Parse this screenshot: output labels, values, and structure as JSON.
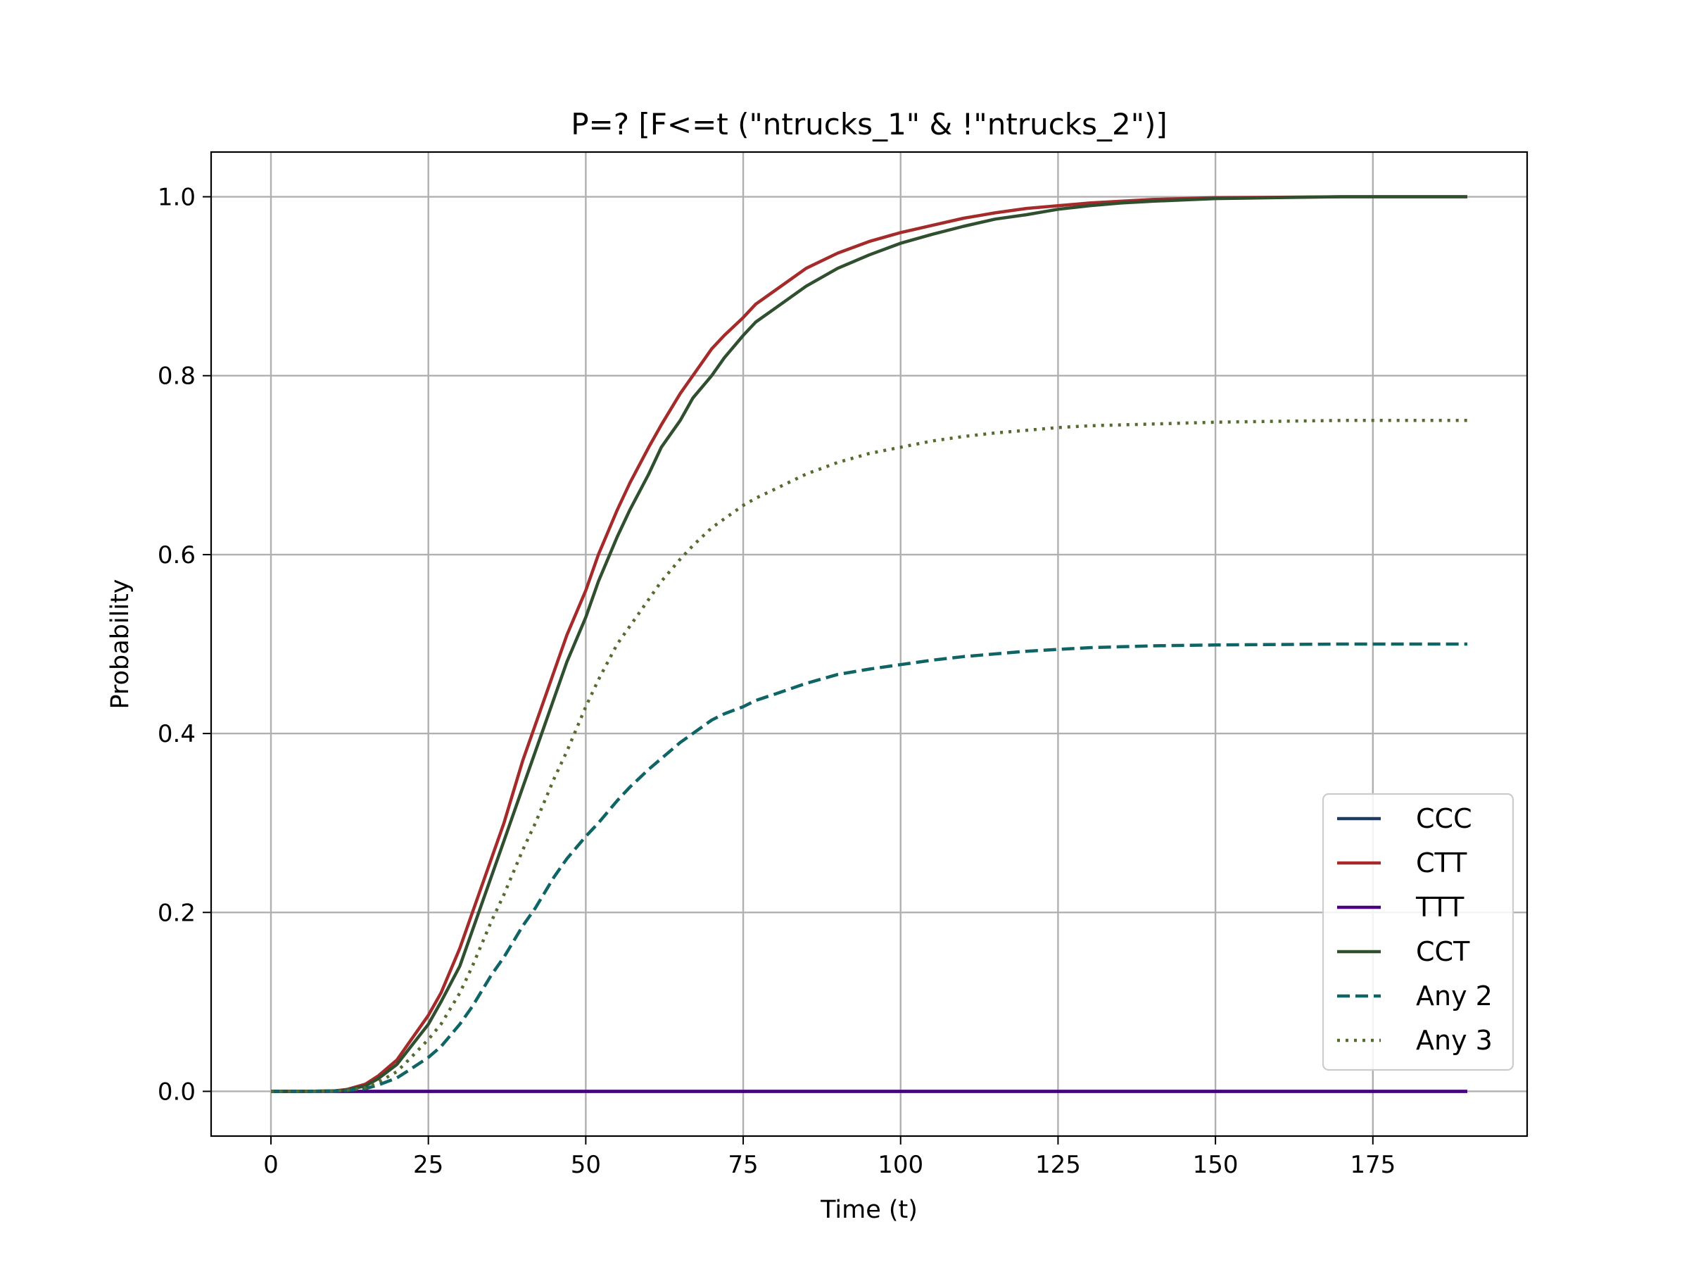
{
  "chart_data": {
    "type": "line",
    "title": "P=? [F<=t (\"ntrucks_1\" & !\"ntrucks_2\")]",
    "xlabel": "Time (t)",
    "ylabel": "Probability",
    "xlim": [
      -9.5,
      199.5
    ],
    "ylim": [
      -0.05,
      1.05
    ],
    "xticks": [
      0,
      25,
      50,
      75,
      100,
      125,
      150,
      175
    ],
    "xtick_labels": [
      "0",
      "25",
      "50",
      "75",
      "100",
      "125",
      "150",
      "175"
    ],
    "yticks": [
      0.0,
      0.2,
      0.4,
      0.6,
      0.8,
      1.0
    ],
    "ytick_labels": [
      "0.0",
      "0.2",
      "0.4",
      "0.6",
      "0.8",
      "1.0"
    ],
    "grid": true,
    "legend_position": "lower-right",
    "x": [
      0,
      5,
      10,
      12,
      15,
      17,
      20,
      22,
      25,
      27,
      30,
      32,
      35,
      37,
      40,
      42,
      45,
      47,
      50,
      52,
      55,
      57,
      60,
      62,
      65,
      67,
      70,
      72,
      75,
      77,
      80,
      85,
      90,
      95,
      100,
      105,
      110,
      115,
      120,
      125,
      130,
      135,
      140,
      150,
      160,
      170,
      180,
      190
    ],
    "series": [
      {
        "name": "CCC",
        "color": "#1f3a5f",
        "dash": "solid",
        "values": [
          0,
          0,
          0,
          0,
          0,
          0,
          0,
          0,
          0,
          0,
          0,
          0,
          0,
          0,
          0,
          0,
          0,
          0,
          0,
          0,
          0,
          0,
          0,
          0,
          0,
          0,
          0,
          0,
          0,
          0,
          0,
          0,
          0,
          0,
          0,
          0,
          0,
          0,
          0,
          0,
          0,
          0,
          0,
          0,
          0,
          0,
          0,
          0
        ]
      },
      {
        "name": "CTT",
        "color": "#a52a2a",
        "dash": "solid",
        "values": [
          0.0,
          0.0,
          0.0005,
          0.002,
          0.008,
          0.017,
          0.035,
          0.055,
          0.085,
          0.11,
          0.16,
          0.2,
          0.26,
          0.3,
          0.37,
          0.41,
          0.47,
          0.51,
          0.56,
          0.6,
          0.65,
          0.68,
          0.72,
          0.745,
          0.78,
          0.8,
          0.83,
          0.845,
          0.865,
          0.88,
          0.895,
          0.92,
          0.937,
          0.95,
          0.96,
          0.968,
          0.976,
          0.982,
          0.987,
          0.99,
          0.993,
          0.995,
          0.997,
          0.999,
          0.9995,
          1.0,
          1.0,
          1.0
        ]
      },
      {
        "name": "TTT",
        "color": "#4b0082",
        "dash": "solid",
        "values": [
          0,
          0,
          0,
          0,
          0,
          0,
          0,
          0,
          0,
          0,
          0,
          0,
          0,
          0,
          0,
          0,
          0,
          0,
          0,
          0,
          0,
          0,
          0,
          0,
          0,
          0,
          0,
          0,
          0,
          0,
          0,
          0,
          0,
          0,
          0,
          0,
          0,
          0,
          0,
          0,
          0,
          0,
          0,
          0,
          0,
          0,
          0,
          0
        ]
      },
      {
        "name": "CCT",
        "color": "#2f4f2f",
        "dash": "solid",
        "values": [
          0.0,
          0.0,
          0.0004,
          0.0015,
          0.006,
          0.014,
          0.03,
          0.048,
          0.075,
          0.1,
          0.14,
          0.18,
          0.24,
          0.28,
          0.34,
          0.38,
          0.44,
          0.48,
          0.53,
          0.57,
          0.62,
          0.65,
          0.69,
          0.72,
          0.75,
          0.775,
          0.8,
          0.82,
          0.845,
          0.86,
          0.875,
          0.9,
          0.92,
          0.935,
          0.948,
          0.958,
          0.967,
          0.975,
          0.98,
          0.986,
          0.99,
          0.993,
          0.995,
          0.998,
          0.999,
          1.0,
          1.0,
          1.0
        ]
      },
      {
        "name": "Any 2",
        "color": "#0f6466",
        "dash": "dashed",
        "values": [
          0.0,
          0.0,
          0.0002,
          0.001,
          0.003,
          0.007,
          0.015,
          0.024,
          0.038,
          0.05,
          0.075,
          0.095,
          0.13,
          0.15,
          0.185,
          0.205,
          0.24,
          0.26,
          0.285,
          0.3,
          0.325,
          0.34,
          0.36,
          0.372,
          0.39,
          0.4,
          0.415,
          0.422,
          0.43,
          0.437,
          0.444,
          0.456,
          0.466,
          0.472,
          0.477,
          0.482,
          0.486,
          0.489,
          0.492,
          0.494,
          0.496,
          0.497,
          0.498,
          0.499,
          0.4995,
          0.5,
          0.5,
          0.5
        ]
      },
      {
        "name": "Any 3",
        "color": "#556b2f",
        "dash": "dotted",
        "values": [
          0.0,
          0.0,
          0.0003,
          0.0012,
          0.004,
          0.01,
          0.022,
          0.036,
          0.058,
          0.075,
          0.11,
          0.14,
          0.19,
          0.22,
          0.27,
          0.3,
          0.35,
          0.38,
          0.43,
          0.46,
          0.5,
          0.52,
          0.55,
          0.57,
          0.595,
          0.61,
          0.63,
          0.64,
          0.655,
          0.663,
          0.673,
          0.69,
          0.703,
          0.713,
          0.72,
          0.727,
          0.732,
          0.736,
          0.739,
          0.742,
          0.744,
          0.745,
          0.746,
          0.748,
          0.749,
          0.75,
          0.75,
          0.75
        ]
      }
    ]
  }
}
